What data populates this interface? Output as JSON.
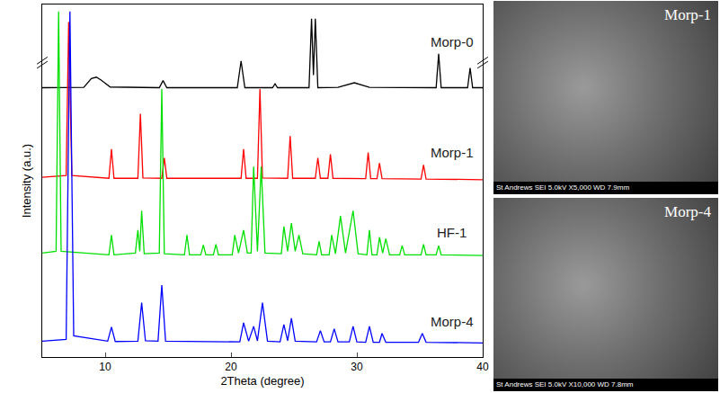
{
  "chart_data": {
    "type": "line",
    "x_label": "2Theta (degree)",
    "y_label": "Intensity (a.u.)",
    "xlim": [
      5,
      40
    ],
    "xticks": [
      10,
      20,
      30,
      40
    ],
    "ylim": [
      0,
      100
    ],
    "tick_labels": "x",
    "grid": false,
    "series": [
      {
        "name": "Morp-0",
        "color": "#000000",
        "x": [
          5,
          8.3,
          8.9,
          9.3,
          9.7,
          10.4,
          14.3,
          14.6,
          14.9,
          20.5,
          20.8,
          21.1,
          23.3,
          23.5,
          23.7,
          26.2,
          26.4,
          26.55,
          26.7,
          26.9,
          28.5,
          29.8,
          31.0,
          36.3,
          36.5,
          36.7,
          38.8,
          39.0,
          39.2,
          40
        ],
        "values": [
          76.4,
          76.5,
          79,
          79.4,
          78.5,
          76.6,
          76.4,
          78.4,
          76.4,
          76.4,
          84,
          76.4,
          76.4,
          77.5,
          76.4,
          76.4,
          96,
          80,
          96,
          76.4,
          76.5,
          77.8,
          76.5,
          76.4,
          86,
          76.4,
          76.4,
          82,
          76.4,
          76.4
        ]
      },
      {
        "name": "Morp-1",
        "color": "#ff0000",
        "x": [
          5,
          6.9,
          7.1,
          7.35,
          10.3,
          10.5,
          10.7,
          12.6,
          12.8,
          13.0,
          14.5,
          14.7,
          14.9,
          20.8,
          21.0,
          21.2,
          22.1,
          22.3,
          22.5,
          24.5,
          24.7,
          24.9,
          26.7,
          26.9,
          27.1,
          27.7,
          27.9,
          28.1,
          30.7,
          30.9,
          31.1,
          31.6,
          31.8,
          32.0,
          35.1,
          35.3,
          35.5,
          40
        ],
        "values": [
          51,
          51.5,
          95,
          51.5,
          50.7,
          59,
          50.7,
          50.7,
          69,
          50.8,
          50.7,
          56.5,
          50.7,
          50.7,
          59,
          50.7,
          50.7,
          76,
          50.8,
          50.7,
          62.7,
          50.7,
          50.7,
          56.5,
          50.7,
          50.7,
          57.5,
          50.7,
          50.6,
          58,
          50.6,
          50.6,
          55,
          50.6,
          50.5,
          54.5,
          50.5,
          50.3
        ]
      },
      {
        "name": "HF-1",
        "color": "#00e000",
        "x": [
          5,
          6.1,
          6.3,
          6.5,
          10.3,
          10.5,
          10.7,
          12.4,
          12.6,
          12.75,
          12.9,
          13.1,
          14.3,
          14.5,
          14.7,
          16.3,
          16.5,
          16.7,
          17.6,
          17.8,
          18.0,
          18.6,
          18.8,
          19.0,
          20.1,
          20.3,
          20.6,
          21.0,
          21.3,
          21.6,
          21.8,
          22.1,
          22.4,
          22.7,
          24.0,
          24.2,
          24.5,
          24.8,
          25.1,
          25.4,
          25.7,
          26.8,
          27.0,
          27.2,
          27.8,
          28.0,
          28.3,
          28.7,
          29.1,
          29.7,
          30.1,
          30.8,
          31.0,
          31.2,
          31.6,
          31.8,
          32.05,
          32.3,
          32.6,
          33.4,
          33.6,
          33.8,
          35.1,
          35.3,
          35.5,
          36.3,
          36.5,
          36.7,
          40
        ],
        "values": [
          29.5,
          30,
          98,
          30,
          29,
          34.6,
          29,
          29.5,
          36,
          30,
          41.5,
          29.3,
          29.5,
          76,
          29.3,
          29,
          34.6,
          29,
          29,
          31.8,
          29,
          29,
          32,
          29,
          29,
          34.6,
          29.5,
          36,
          29.5,
          29.5,
          54,
          30,
          54,
          29.5,
          29.3,
          37,
          30,
          38,
          30,
          34.6,
          29.3,
          29,
          32.8,
          29,
          29,
          34.6,
          29.3,
          40,
          29.5,
          41.5,
          29.3,
          29,
          36,
          29,
          29,
          34,
          29.5,
          33.6,
          29,
          29,
          31.6,
          29,
          29,
          32,
          29,
          29,
          31.6,
          29,
          28.8
        ]
      },
      {
        "name": "Morp-4",
        "color": "#0000ff",
        "x": [
          5,
          6.9,
          7.2,
          7.5,
          10.2,
          10.5,
          10.8,
          12.6,
          12.9,
          13.2,
          14.2,
          14.5,
          14.8,
          20.7,
          21.0,
          21.4,
          21.8,
          22.1,
          22.5,
          22.9,
          23.9,
          24.2,
          24.5,
          24.8,
          25.1,
          26.8,
          27.1,
          27.4,
          27.9,
          28.2,
          28.5,
          29.4,
          29.7,
          30.0,
          30.7,
          31.0,
          31.3,
          31.8,
          32.0,
          32.3,
          34.9,
          35.2,
          35.5,
          40
        ],
        "values": [
          4.5,
          5,
          98,
          6,
          4.5,
          8.5,
          4.4,
          4.5,
          15.4,
          4.6,
          4.5,
          20.4,
          4.5,
          4.3,
          9.7,
          4.5,
          8.7,
          4.6,
          15.4,
          4.5,
          4.3,
          9.2,
          4.6,
          11,
          4.5,
          4.3,
          7.5,
          4.3,
          4.3,
          8,
          4.3,
          4.3,
          8.7,
          4.3,
          4.2,
          8.7,
          4.2,
          4.2,
          6.7,
          4.2,
          4.2,
          6.7,
          4.2,
          4.0
        ]
      }
    ]
  },
  "panels": [
    {
      "label": "Morp-1",
      "caption": "St Andrews   SEI   5.0kV   X5,000   WD 7.9mm"
    },
    {
      "label": "Morp-4",
      "caption": "St Andrews   SEI   5.0kV   X10,000   WD 7.8mm"
    }
  ]
}
